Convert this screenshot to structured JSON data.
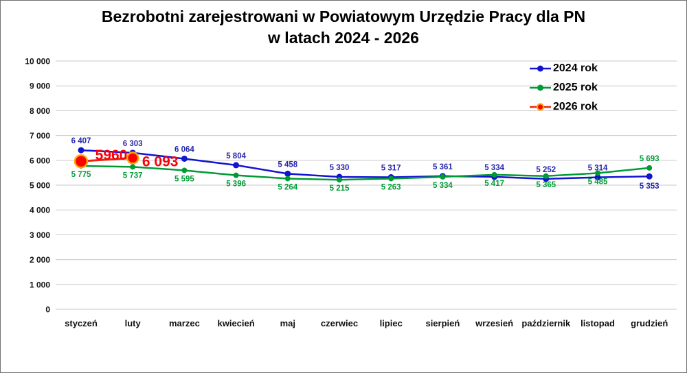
{
  "chart_data": {
    "type": "line",
    "title_line1": "Bezrobotni zarejestrowani w Powiatowym Urzędzie Pracy dla PN",
    "title_line2": "w latach 2024 - 2026",
    "categories": [
      "styczeń",
      "luty",
      "marzec",
      "kwiecień",
      "maj",
      "czerwiec",
      "lipiec",
      "sierpień",
      "wrzesień",
      "październik",
      "listopad",
      "grudzień"
    ],
    "y_axis": {
      "min": 0,
      "max": 10000,
      "step": 1000,
      "tick_labels": [
        "10 000",
        "9 000",
        "8 000",
        "7 000",
        "6 000",
        "5 000",
        "4 000",
        "3 000",
        "2 000",
        "1 000",
        "0"
      ]
    },
    "grid": true,
    "legend_position": "top-right",
    "colors": {
      "grid": "#C9C9C9",
      "axis_text": "#111111"
    },
    "series": [
      {
        "name": "2024 rok",
        "color": "#1313D2",
        "label_color": "#2626AE",
        "values": [
          6407,
          6303,
          6064,
          5804,
          5458,
          5330,
          5317,
          5361,
          5334,
          5252,
          5314,
          5353
        ],
        "point_labels": [
          "6 407",
          "6 303",
          "6 064",
          "5 804",
          "5 458",
          "5 330",
          "5 317",
          "5 361",
          "5 334",
          "5 252",
          "5 314",
          "5 353"
        ]
      },
      {
        "name": "2025 rok",
        "color": "#009B35",
        "label_color": "#009B35",
        "values": [
          5775,
          5737,
          5595,
          5396,
          5264,
          5215,
          5263,
          5334,
          5417,
          5365,
          5485,
          5693
        ],
        "point_labels": [
          "5 775",
          "5 737",
          "5 595",
          "5 396",
          "5 264",
          "5 215",
          "5 263",
          "5 334",
          "5 417",
          "5 365",
          "5 485",
          "5 693"
        ]
      },
      {
        "name": "2026 rok",
        "color": "#E8260E",
        "marker_fill": "#FE0000",
        "marker_ring": "#FFA800",
        "label_color": "#FB0007",
        "values": [
          5960,
          6093
        ],
        "point_labels": [
          "5960",
          "6 093"
        ]
      }
    ]
  }
}
